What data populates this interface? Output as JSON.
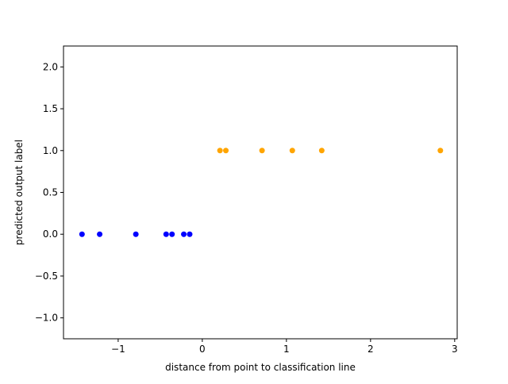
{
  "chart_data": {
    "type": "scatter",
    "title": "",
    "xlabel": "distance from point to classification line",
    "ylabel": "predicted output label",
    "xlim": [
      -1.65,
      3.03
    ],
    "ylim": [
      -1.25,
      2.25
    ],
    "xticks": [
      -1,
      0,
      1,
      2,
      3
    ],
    "xtick_labels": [
      "−1",
      "0",
      "1",
      "2",
      "3"
    ],
    "yticks": [
      -1.0,
      -0.5,
      0.0,
      0.5,
      1.0,
      1.5,
      2.0
    ],
    "ytick_labels": [
      "−1.0",
      "−0.5",
      "0.0",
      "0.5",
      "1.0",
      "1.5",
      "2.0"
    ],
    "grid": false,
    "series": [
      {
        "color": "#0000ff",
        "points": [
          {
            "x": -1.43,
            "y": 0
          },
          {
            "x": -1.22,
            "y": 0
          },
          {
            "x": -0.79,
            "y": 0
          },
          {
            "x": -0.43,
            "y": 0
          },
          {
            "x": -0.36,
            "y": 0
          },
          {
            "x": -0.22,
            "y": 0
          },
          {
            "x": -0.15,
            "y": 0
          }
        ]
      },
      {
        "color": "#ffa500",
        "points": [
          {
            "x": 0.21,
            "y": 1
          },
          {
            "x": 0.28,
            "y": 1
          },
          {
            "x": 0.71,
            "y": 1
          },
          {
            "x": 1.07,
            "y": 1
          },
          {
            "x": 1.42,
            "y": 1
          },
          {
            "x": 2.83,
            "y": 1
          }
        ]
      }
    ]
  }
}
